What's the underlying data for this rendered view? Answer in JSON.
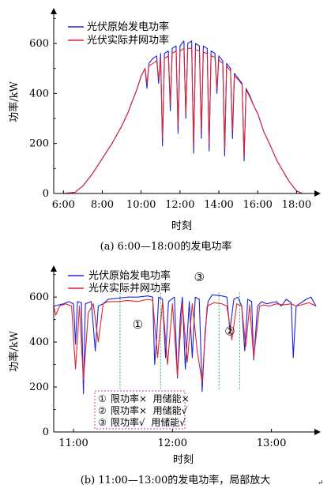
{
  "chart_data": [
    {
      "type": "line",
      "xlabel": "时刻",
      "ylabel": "功率/kW",
      "caption": "(a) 6:00—18:00的发电功率",
      "x_ticks": [
        "6:00",
        "8:00",
        "10:00",
        "12:00",
        "14:00",
        "16:00",
        "18:00"
      ],
      "xlim": [
        5.5,
        19.0
      ],
      "y_ticks": [
        "0",
        "200",
        "400",
        "600"
      ],
      "ylim": [
        0,
        720
      ],
      "legend_position": "top-left",
      "series": [
        {
          "name": "光伏原始发电功率",
          "color": "#1c22d6",
          "points": [
            [
              5.5,
              0
            ],
            [
              6.0,
              0
            ],
            [
              6.6,
              5
            ],
            [
              7.0,
              30
            ],
            [
              7.5,
              80
            ],
            [
              8.0,
              140
            ],
            [
              8.5,
              200
            ],
            [
              9.0,
              270
            ],
            [
              9.3,
              320
            ],
            [
              9.6,
              380
            ],
            [
              9.8,
              420
            ],
            [
              10.0,
              470
            ],
            [
              10.2,
              500
            ],
            [
              10.3,
              420
            ],
            [
              10.4,
              520
            ],
            [
              10.6,
              540
            ],
            [
              10.8,
              550
            ],
            [
              10.9,
              440
            ],
            [
              11.0,
              560
            ],
            [
              11.1,
              190
            ],
            [
              11.2,
              560
            ],
            [
              11.4,
              570
            ],
            [
              11.5,
              330
            ],
            [
              11.6,
              580
            ],
            [
              11.8,
              590
            ],
            [
              11.9,
              240
            ],
            [
              12.0,
              590
            ],
            [
              12.1,
              600
            ],
            [
              12.2,
              610
            ],
            [
              12.3,
              300
            ],
            [
              12.4,
              600
            ],
            [
              12.6,
              610
            ],
            [
              12.7,
              160
            ],
            [
              12.8,
              600
            ],
            [
              13.0,
              590
            ],
            [
              13.1,
              220
            ],
            [
              13.2,
              590
            ],
            [
              13.4,
              580
            ],
            [
              13.5,
              170
            ],
            [
              13.6,
              570
            ],
            [
              13.8,
              560
            ],
            [
              13.9,
              400
            ],
            [
              14.0,
              550
            ],
            [
              14.2,
              530
            ],
            [
              14.3,
              150
            ],
            [
              14.4,
              520
            ],
            [
              14.6,
              500
            ],
            [
              14.7,
              220
            ],
            [
              14.8,
              480
            ],
            [
              15.0,
              460
            ],
            [
              15.2,
              440
            ],
            [
              15.3,
              130
            ],
            [
              15.4,
              420
            ],
            [
              15.6,
              390
            ],
            [
              15.8,
              350
            ],
            [
              16.0,
              320
            ],
            [
              16.3,
              250
            ],
            [
              16.6,
              200
            ],
            [
              17.0,
              130
            ],
            [
              17.3,
              90
            ],
            [
              17.6,
              50
            ],
            [
              18.0,
              10
            ],
            [
              18.3,
              0
            ],
            [
              19.0,
              0
            ]
          ]
        },
        {
          "name": "光伏实际并网功率",
          "color": "#e0242e",
          "points": [
            [
              5.5,
              0
            ],
            [
              6.0,
              0
            ],
            [
              6.6,
              5
            ],
            [
              7.0,
              30
            ],
            [
              7.5,
              80
            ],
            [
              8.0,
              140
            ],
            [
              8.5,
              200
            ],
            [
              9.0,
              270
            ],
            [
              9.3,
              320
            ],
            [
              9.6,
              380
            ],
            [
              9.8,
              420
            ],
            [
              10.0,
              470
            ],
            [
              10.2,
              500
            ],
            [
              10.3,
              440
            ],
            [
              10.4,
              510
            ],
            [
              10.6,
              520
            ],
            [
              10.8,
              530
            ],
            [
              10.9,
              460
            ],
            [
              11.0,
              540
            ],
            [
              11.1,
              220
            ],
            [
              11.2,
              540
            ],
            [
              11.4,
              550
            ],
            [
              11.5,
              360
            ],
            [
              11.6,
              560
            ],
            [
              11.8,
              570
            ],
            [
              11.9,
              270
            ],
            [
              12.0,
              570
            ],
            [
              12.1,
              575
            ],
            [
              12.2,
              580
            ],
            [
              12.3,
              320
            ],
            [
              12.4,
              580
            ],
            [
              12.6,
              580
            ],
            [
              12.7,
              190
            ],
            [
              12.8,
              575
            ],
            [
              13.0,
              570
            ],
            [
              13.1,
              250
            ],
            [
              13.2,
              565
            ],
            [
              13.4,
              560
            ],
            [
              13.5,
              200
            ],
            [
              13.6,
              550
            ],
            [
              13.8,
              545
            ],
            [
              13.9,
              420
            ],
            [
              14.0,
              535
            ],
            [
              14.2,
              520
            ],
            [
              14.3,
              180
            ],
            [
              14.4,
              510
            ],
            [
              14.6,
              490
            ],
            [
              14.7,
              250
            ],
            [
              14.8,
              470
            ],
            [
              15.0,
              455
            ],
            [
              15.2,
              435
            ],
            [
              15.3,
              150
            ],
            [
              15.4,
              415
            ],
            [
              15.6,
              385
            ],
            [
              15.8,
              350
            ],
            [
              16.0,
              320
            ],
            [
              16.3,
              250
            ],
            [
              16.6,
              200
            ],
            [
              17.0,
              130
            ],
            [
              17.3,
              90
            ],
            [
              17.6,
              50
            ],
            [
              18.0,
              10
            ],
            [
              18.3,
              0
            ],
            [
              19.0,
              0
            ]
          ]
        }
      ]
    },
    {
      "type": "line",
      "xlabel": "时刻",
      "ylabel": "功率/kW",
      "caption": "(b) 11:00—13:00的发电功率，局部放大",
      "x_ticks": [
        "11:00",
        "12:00",
        "13:00"
      ],
      "xlim": [
        10.8,
        13.45
      ],
      "y_ticks": [
        "0",
        "200",
        "400",
        "600"
      ],
      "ylim": [
        0,
        720
      ],
      "legend_position": "top",
      "series": [
        {
          "name": "光伏原始发电功率",
          "color": "#1c22d6",
          "points": [
            [
              10.8,
              560
            ],
            [
              10.9,
              570
            ],
            [
              10.95,
              580
            ],
            [
              11.0,
              570
            ],
            [
              11.02,
              390
            ],
            [
              11.04,
              580
            ],
            [
              11.08,
              575
            ],
            [
              11.1,
              170
            ],
            [
              11.12,
              570
            ],
            [
              11.18,
              580
            ],
            [
              11.22,
              360
            ],
            [
              11.25,
              560
            ],
            [
              11.3,
              570
            ],
            [
              11.35,
              590
            ],
            [
              11.45,
              595
            ],
            [
              11.55,
              600
            ],
            [
              11.65,
              600
            ],
            [
              11.75,
              605
            ],
            [
              11.8,
              600
            ],
            [
              11.82,
              300
            ],
            [
              11.84,
              420
            ],
            [
              11.86,
              600
            ],
            [
              11.9,
              590
            ],
            [
              11.93,
              330
            ],
            [
              11.96,
              580
            ],
            [
              12.02,
              600
            ],
            [
              12.05,
              240
            ],
            [
              12.08,
              520
            ],
            [
              12.1,
              600
            ],
            [
              12.13,
              280
            ],
            [
              12.17,
              580
            ],
            [
              12.2,
              330
            ],
            [
              12.23,
              600
            ],
            [
              12.27,
              590
            ],
            [
              12.3,
              180
            ],
            [
              12.33,
              450
            ],
            [
              12.36,
              580
            ],
            [
              12.4,
              610
            ],
            [
              12.5,
              605
            ],
            [
              12.55,
              600
            ],
            [
              12.58,
              450
            ],
            [
              12.62,
              590
            ],
            [
              12.66,
              600
            ],
            [
              12.7,
              560
            ],
            [
              12.73,
              360
            ],
            [
              12.76,
              590
            ],
            [
              12.8,
              580
            ],
            [
              12.82,
              320
            ],
            [
              12.86,
              560
            ],
            [
              12.9,
              580
            ],
            [
              12.95,
              570
            ],
            [
              13.0,
              575
            ],
            [
              13.05,
              580
            ],
            [
              13.1,
              560
            ],
            [
              13.15,
              590
            ],
            [
              13.2,
              575
            ],
            [
              13.22,
              330
            ],
            [
              13.25,
              560
            ],
            [
              13.3,
              575
            ],
            [
              13.35,
              590
            ],
            [
              13.4,
              600
            ],
            [
              13.45,
              560
            ]
          ]
        },
        {
          "name": "光伏实际并网功率",
          "color": "#e0242e",
          "points": [
            [
              10.8,
              560
            ],
            [
              10.82,
              520
            ],
            [
              10.86,
              560
            ],
            [
              10.92,
              570
            ],
            [
              10.98,
              560
            ],
            [
              11.02,
              280
            ],
            [
              11.06,
              560
            ],
            [
              11.1,
              230
            ],
            [
              11.15,
              530
            ],
            [
              11.2,
              570
            ],
            [
              11.25,
              400
            ],
            [
              11.3,
              570
            ],
            [
              11.35,
              580
            ],
            [
              11.45,
              580
            ],
            [
              11.55,
              585
            ],
            [
              11.65,
              580
            ],
            [
              11.75,
              590
            ],
            [
              11.8,
              585
            ],
            [
              11.85,
              330
            ],
            [
              11.9,
              580
            ],
            [
              11.95,
              300
            ],
            [
              12.0,
              570
            ],
            [
              12.05,
              250
            ],
            [
              12.1,
              570
            ],
            [
              12.15,
              310
            ],
            [
              12.2,
              570
            ],
            [
              12.25,
              360
            ],
            [
              12.3,
              220
            ],
            [
              12.35,
              560
            ],
            [
              12.42,
              575
            ],
            [
              12.5,
              570
            ],
            [
              12.55,
              560
            ],
            [
              12.6,
              410
            ],
            [
              12.65,
              570
            ],
            [
              12.7,
              560
            ],
            [
              12.74,
              380
            ],
            [
              12.78,
              565
            ],
            [
              12.82,
              330
            ],
            [
              12.88,
              560
            ],
            [
              12.92,
              565
            ],
            [
              12.98,
              560
            ],
            [
              13.05,
              570
            ],
            [
              13.12,
              565
            ],
            [
              13.2,
              570
            ],
            [
              13.25,
              560
            ],
            [
              13.3,
              565
            ],
            [
              13.38,
              575
            ],
            [
              13.45,
              560
            ]
          ]
        }
      ],
      "region_dividers_x": [
        11.47,
        11.88,
        12.47,
        12.68
      ],
      "annotations": [
        {
          "marker": "①",
          "x": 11.65,
          "y": 460
        },
        {
          "marker": "②",
          "x": 12.58,
          "y": 430
        },
        {
          "marker": "③",
          "x": 12.27,
          "y": 670
        }
      ],
      "info_box": [
        {
          "marker": "①",
          "text": "限功率×  用储能×"
        },
        {
          "marker": "②",
          "text": "限功率×  用储能√"
        },
        {
          "marker": "③",
          "text": "限功率√  用储能√"
        }
      ],
      "info_box_color": "#c43fb0",
      "divider_color": "#2eaa5a"
    }
  ],
  "return_mark": "↵"
}
